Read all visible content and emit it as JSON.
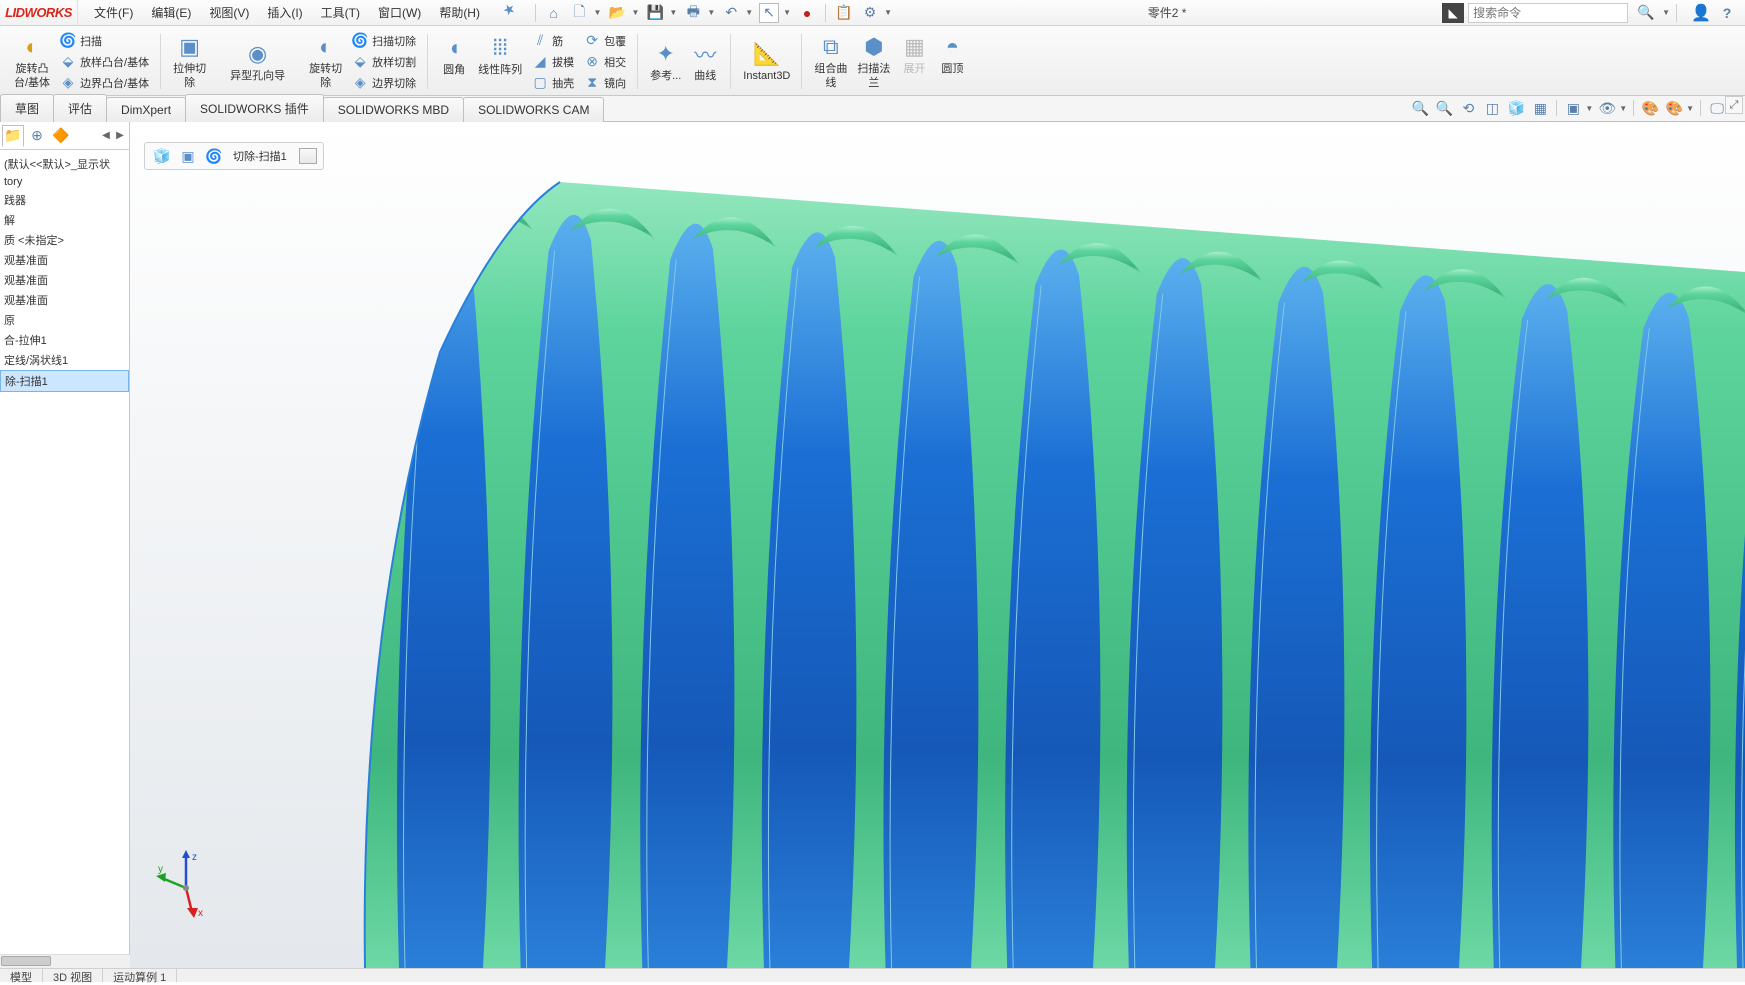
{
  "app": {
    "logo_text": "LIDWORKS"
  },
  "menu": {
    "file": "文件(F)",
    "edit": "编辑(E)",
    "view": "视图(V)",
    "insert": "插入(I)",
    "tool": "工具(T)",
    "window": "窗口(W)",
    "help": "帮助(H)"
  },
  "doc": {
    "title": "零件2 *"
  },
  "search": {
    "placeholder": "搜索命令"
  },
  "ribbon": {
    "g1_big": "旋转凸\n台/基体",
    "g1_s1": "扫描",
    "g1_s2": "放样凸台/基体",
    "g1_s3": "边界凸台/基体",
    "g2_big": "拉伸切\n除",
    "g3_big": "异型孔向导",
    "g4_big": "旋转切\n除",
    "g4_s1": "扫描切除",
    "g4_s2": "放样切割",
    "g4_s3": "边界切除",
    "g5_big1": "圆角",
    "g5_big2": "线性阵列",
    "g5_s1": "筋",
    "g5_s2": "拔模",
    "g5_s3": "抽壳",
    "g5_s4": "包覆",
    "g5_s5": "相交",
    "g5_s6": "镜向",
    "g6_big1": "参考...",
    "g6_big2": "曲线",
    "g7_big": "Instant3D",
    "g8_big1": "组合曲\n线",
    "g8_big2": "扫描法\n兰",
    "g8_big3": "展开",
    "g8_big4": "圆顶"
  },
  "tabs": {
    "t1": "草图",
    "t2": "评估",
    "t3": "DimXpert",
    "t4": "SOLIDWORKS 插件",
    "t5": "SOLIDWORKS MBD",
    "t6": "SOLIDWORKS CAM"
  },
  "breadcrumb": {
    "item": "切除-扫描1"
  },
  "tree": {
    "i1": "(默认<<默认>_显示状",
    "i2": "tory",
    "i3": "践器",
    "i4": "解",
    "i5": "质 <未指定>",
    "i6": "观基准面",
    "i7": "观基准面",
    "i8": "观基准面",
    "i9": "原",
    "i10": "合-拉伸1",
    "i11": "定线/涡状线1",
    "i12": "除-扫描1"
  },
  "status": {
    "s1": "模型",
    "s2": "3D 视图",
    "s3": "运动算例 1"
  },
  "colors": {
    "thread_blue": "#1b6fd4",
    "thread_blue_light": "#3d9bea",
    "thread_green": "#5dd49c",
    "thread_green_light": "#8ae6b8",
    "edge": "#7fc8e8",
    "axis_x": "#d92020",
    "axis_y": "#20a020",
    "axis_z": "#2050d0"
  }
}
